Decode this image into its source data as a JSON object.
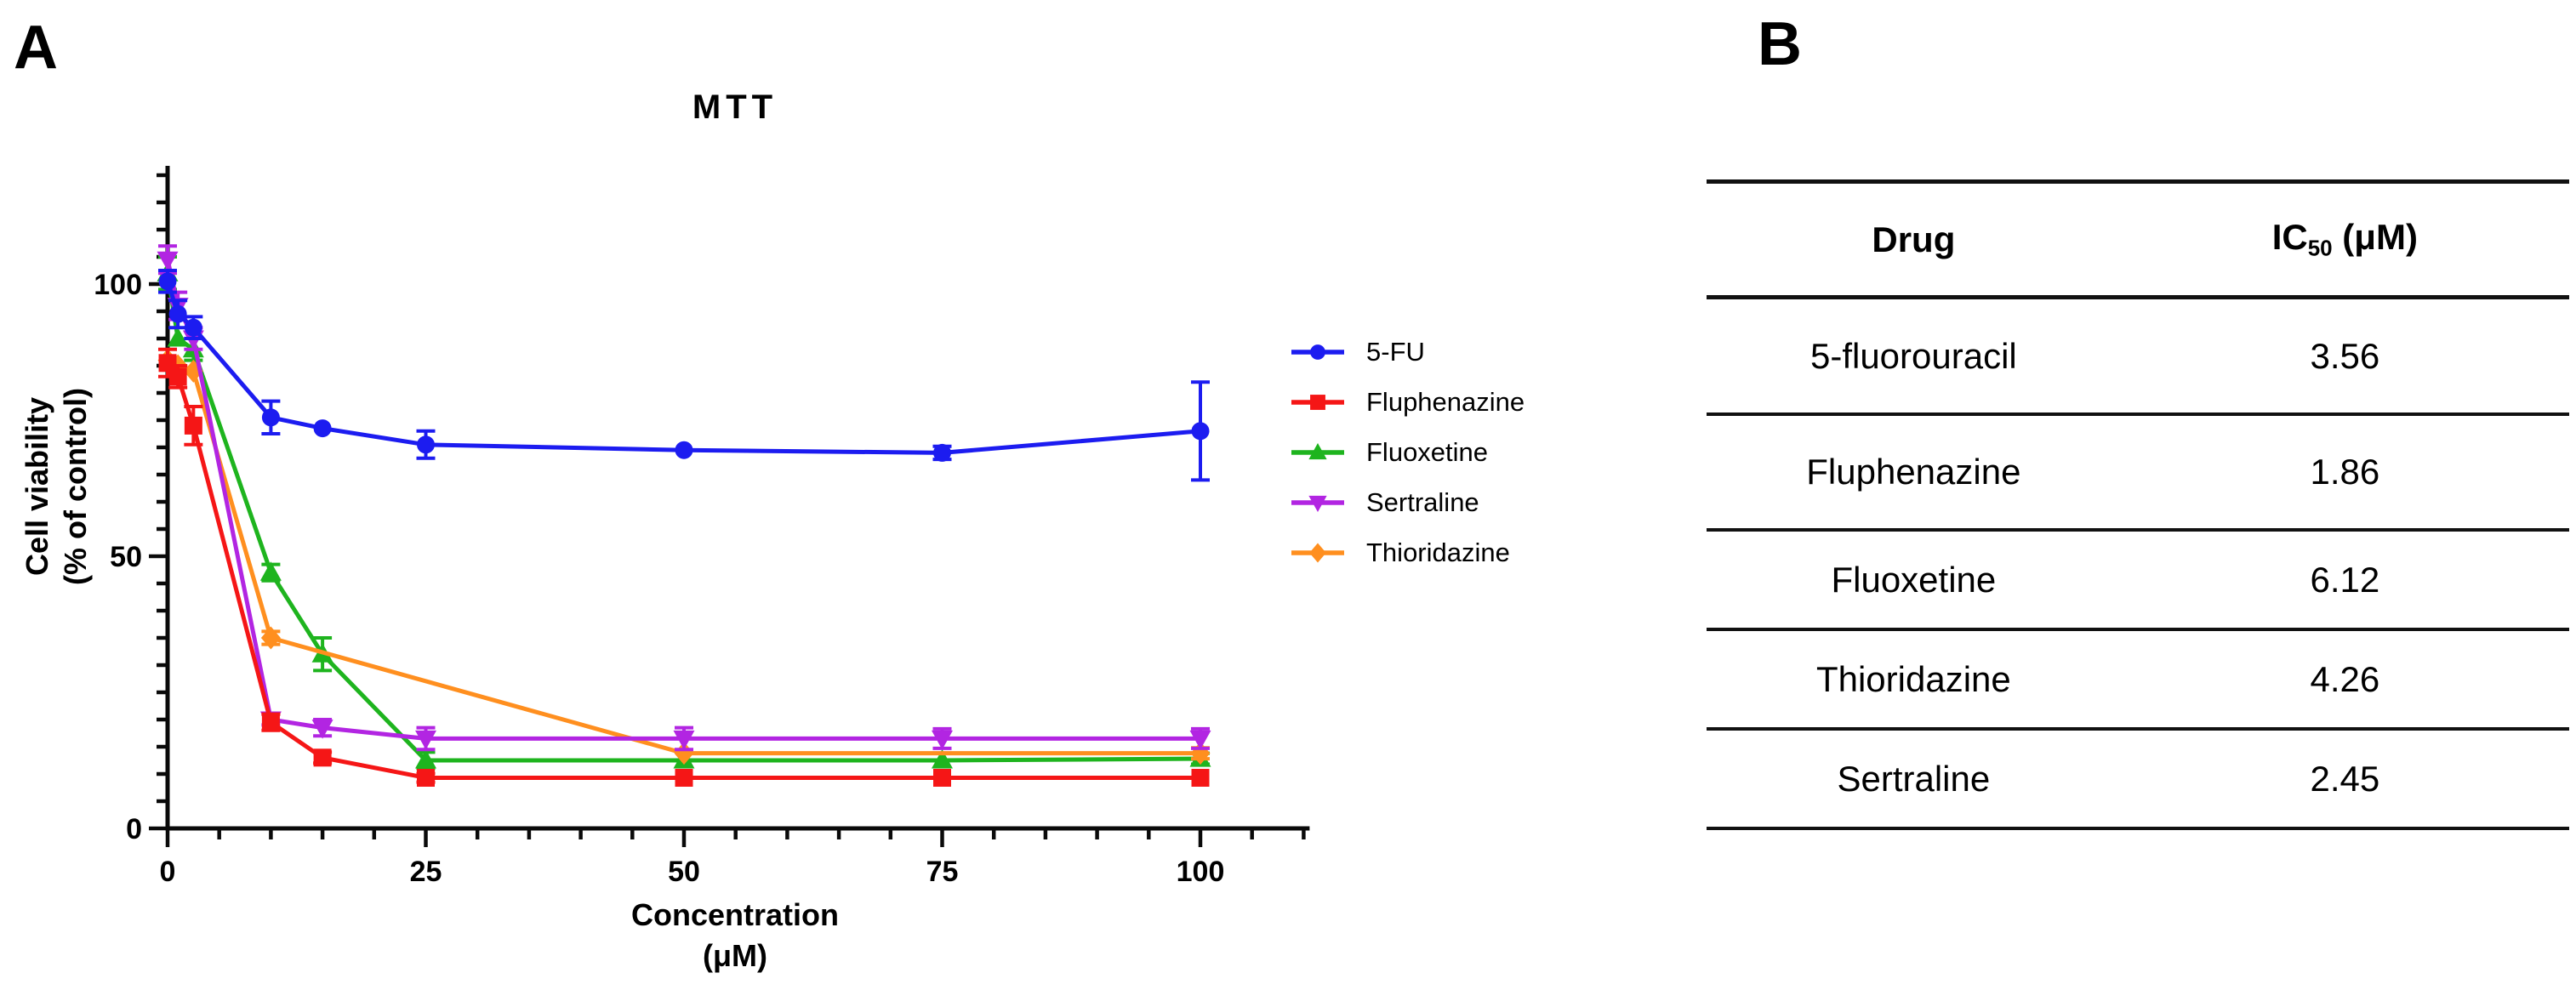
{
  "panel_a": {
    "corner_label": "A",
    "chart_data": {
      "type": "line",
      "title": "MTT",
      "xlabel": "Concentration",
      "xlabel_unit": "(μM)",
      "ylabel_line1": "Cell viability",
      "ylabel_line2": "(% of control)",
      "xlim": [
        0,
        110
      ],
      "ylim": [
        0,
        120
      ],
      "x_major_ticks": [
        0,
        25,
        50,
        75,
        100
      ],
      "y_major_ticks": [
        0,
        50,
        100
      ],
      "minor_tick_step": 5,
      "grid": false,
      "legend_position": "right",
      "axis_color": "#0a0a0a",
      "series": [
        {
          "name": "5-FU",
          "color": "#1c1cf0",
          "marker": "circle",
          "points": [
            [
              0,
              100.5,
              2
            ],
            [
              1,
              94.5,
              2.5
            ],
            [
              2.5,
              92,
              2
            ],
            [
              10,
              75.5,
              3
            ],
            [
              15,
              73.5,
              0
            ],
            [
              25,
              70.5,
              2.5
            ],
            [
              50,
              69.5,
              0
            ],
            [
              75,
              69,
              1.2
            ],
            [
              100,
              73,
              9
            ]
          ]
        },
        {
          "name": "Fluphenazine",
          "color": "#f51616",
          "marker": "square",
          "points": [
            [
              0,
              85.5,
              2.5
            ],
            [
              1,
              83,
              2
            ],
            [
              2.5,
              74,
              3.5
            ],
            [
              10,
              19.5,
              1.5
            ],
            [
              15,
              13,
              1
            ],
            [
              25,
              9.3,
              0.8
            ],
            [
              50,
              9.3,
              0
            ],
            [
              75,
              9.3,
              0
            ],
            [
              100,
              9.3,
              0
            ]
          ]
        },
        {
          "name": "Fluoxetine",
          "color": "#1eb41e",
          "marker": "triangle-up",
          "points": [
            [
              0,
              102,
              3
            ],
            [
              1,
              90,
              0
            ],
            [
              2.5,
              88,
              2
            ],
            [
              10,
              47,
              1.5
            ],
            [
              15,
              32,
              3
            ],
            [
              25,
              12.5,
              1.5
            ],
            [
              50,
              12.5,
              0
            ],
            [
              75,
              12.5,
              0
            ],
            [
              100,
              12.8,
              1
            ]
          ]
        },
        {
          "name": "Sertraline",
          "color": "#b225e2",
          "marker": "triangle-down",
          "points": [
            [
              0,
              104.5,
              2.5
            ],
            [
              1,
              96,
              2.5
            ],
            [
              2.5,
              90,
              2
            ],
            [
              10,
              20,
              1
            ],
            [
              15,
              18.5,
              1.5
            ],
            [
              25,
              16.5,
              2
            ],
            [
              50,
              16.5,
              2
            ],
            [
              75,
              16.5,
              1.8
            ],
            [
              100,
              16.5,
              1.8
            ]
          ]
        },
        {
          "name": "Thioridazine",
          "color": "#ff8f1f",
          "marker": "diamond",
          "points": [
            [
              0,
              86,
              0
            ],
            [
              1,
              85,
              0
            ],
            [
              2.5,
              84,
              0
            ],
            [
              10,
              35,
              1.2
            ],
            [
              50,
              13.8,
              0
            ],
            [
              100,
              13.8,
              1
            ]
          ]
        }
      ],
      "draw_order": [
        2,
        4,
        3,
        1,
        0
      ]
    }
  },
  "panel_b": {
    "corner_label": "B",
    "table": {
      "col1_header": "Drug",
      "col2_header_main": "IC",
      "col2_header_sub": "50",
      "col2_header_unit": " (μM)",
      "rows": [
        {
          "drug": "5-fluorouracil",
          "ic50": "3.56"
        },
        {
          "drug": "Fluphenazine",
          "ic50": "1.86"
        },
        {
          "drug": "Fluoxetine",
          "ic50": "6.12"
        },
        {
          "drug": "Thioridazine",
          "ic50": "4.26"
        },
        {
          "drug": "Sertraline",
          "ic50": "2.45"
        }
      ]
    }
  }
}
